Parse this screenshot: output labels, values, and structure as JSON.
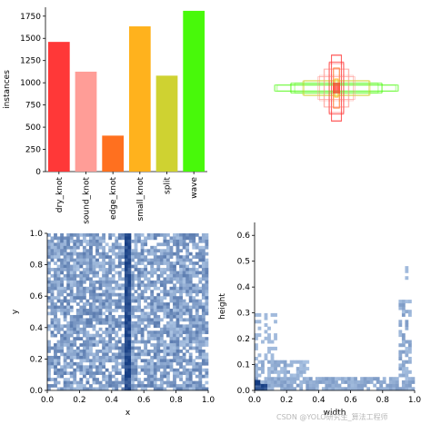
{
  "watermark": "CSDN @YOLO研究生_算法工程师",
  "chart_data": [
    {
      "type": "bar",
      "categories": [
        "dry_knot",
        "sound_knot",
        "edge_knot",
        "small_knot",
        "split",
        "wave"
      ],
      "values": [
        1460,
        1125,
        405,
        1635,
        1080,
        1810
      ],
      "colors": [
        "#ff3838",
        "#ff9d97",
        "#ff701f",
        "#ffb21d",
        "#cfd231",
        "#48f90a"
      ],
      "xlabel": "",
      "ylabel": "instances",
      "ylim": [
        0,
        1850
      ],
      "yticks": [
        0,
        250,
        500,
        750,
        1000,
        1250,
        1500,
        1750
      ]
    },
    {
      "type": "scatter",
      "description_hidden": false,
      "series": [],
      "x": [
        0.5,
        0.5,
        0.5,
        0.5,
        0.5,
        0.5,
        0.5,
        0.5,
        0.5
      ],
      "y": [
        0.5,
        0.5,
        0.5,
        0.5,
        0.5,
        0.5,
        0.5,
        0.5,
        0.5
      ],
      "box_widths": [
        0.98,
        0.75,
        0.55,
        0.3,
        0.2,
        0.12,
        0.08,
        0.05,
        0.03
      ],
      "box_heights": [
        0.05,
        0.08,
        0.12,
        0.2,
        0.3,
        0.45,
        0.6,
        0.35,
        0.15
      ],
      "colors": [
        "#48f90a",
        "#48f90a",
        "#cfd231",
        "#ff9d97",
        "#ff9d97",
        "#ff3838",
        "#ff3838",
        "#ff701f",
        "#ffb21d"
      ]
    },
    {
      "type": "heatmap",
      "xlabel": "x",
      "ylabel": "y",
      "xlim": [
        0,
        1
      ],
      "ylim": [
        0,
        1
      ],
      "xticks": [
        "0.0",
        "0.2",
        "0.4",
        "0.6",
        "0.8",
        "1.0"
      ],
      "yticks": [
        "0.0",
        "0.2",
        "0.4",
        "0.6",
        "0.8",
        "1.0"
      ],
      "distribution": "near-uniform over [0,1]x[0,1] with a dense vertical band at x=0.5",
      "band_x": 0.5
    },
    {
      "type": "heatmap",
      "xlabel": "width",
      "ylabel": "height",
      "xlim": [
        0,
        1
      ],
      "ylim": [
        0,
        0.65
      ],
      "xticks": [
        "0.0",
        "0.2",
        "0.4",
        "0.6",
        "0.8",
        "1.0"
      ],
      "yticks": [
        "0.0",
        "0.1",
        "0.2",
        "0.3",
        "0.4",
        "0.5",
        "0.6"
      ],
      "distribution": "dense near small width/height, horizontal spread at low height, tall cluster near width 0.95",
      "densest_point": [
        0.02,
        0.03
      ]
    }
  ]
}
